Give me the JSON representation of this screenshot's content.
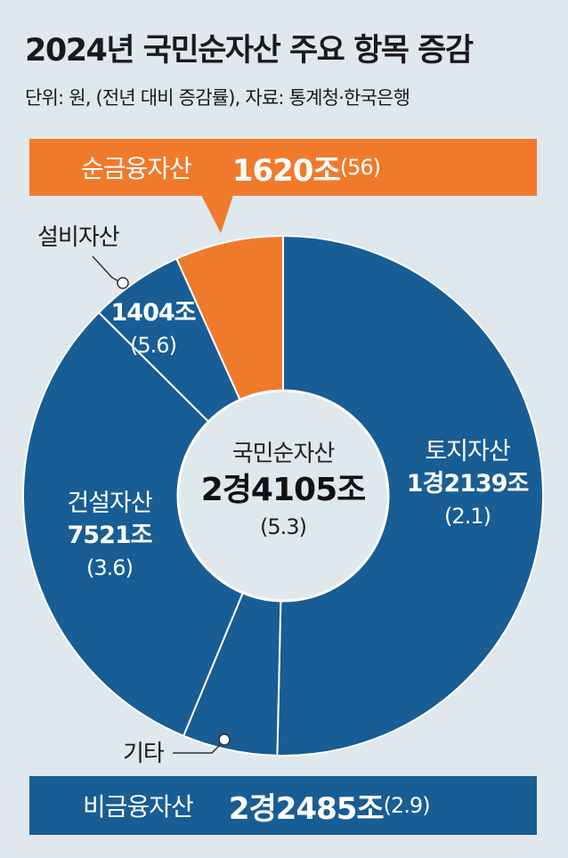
{
  "title": "2024년 국민순자산 주요 항목 증감",
  "subtitle": "단위: 원, (전년 대비 증감률), 자료: 통계청·한국은행",
  "net_financial": {
    "label": "순금융자산",
    "value": "1620조",
    "change": "(56)"
  },
  "non_financial": {
    "label": "비금융자산",
    "value": "2경2485조",
    "change": "(2.9)"
  },
  "center": {
    "label": "국민순자산",
    "value": "2경4105조",
    "change": "(5.3)"
  },
  "segments": {
    "land": {
      "label": "토지자산",
      "value": "1경2139조",
      "change": "(2.1)"
    },
    "construction": {
      "label": "건설자산",
      "value": "7521조",
      "change": "(3.6)"
    },
    "equipment": {
      "label": "설비자산",
      "value": "1404조",
      "change": "(5.6)"
    },
    "other": {
      "label": "기타"
    }
  },
  "colors": {
    "orange": "#f07a2b",
    "blue": "#185d94",
    "background": "#dfe8ec"
  },
  "chart_data": {
    "type": "pie",
    "unit": "조 원",
    "total": 24105,
    "slices": [
      {
        "name": "토지자산",
        "value": 12139,
        "change_pct": 2.1
      },
      {
        "name": "기타",
        "value": 1421,
        "change_pct": null
      },
      {
        "name": "건설자산",
        "value": 7521,
        "change_pct": 3.6
      },
      {
        "name": "설비자산",
        "value": 1404,
        "change_pct": 5.6
      },
      {
        "name": "순금융자산",
        "value": 1620,
        "change_pct": 56
      }
    ],
    "groups": [
      {
        "name": "비금융자산",
        "value": 22485,
        "change_pct": 2.9
      },
      {
        "name": "순금융자산",
        "value": 1620,
        "change_pct": 56
      }
    ]
  }
}
